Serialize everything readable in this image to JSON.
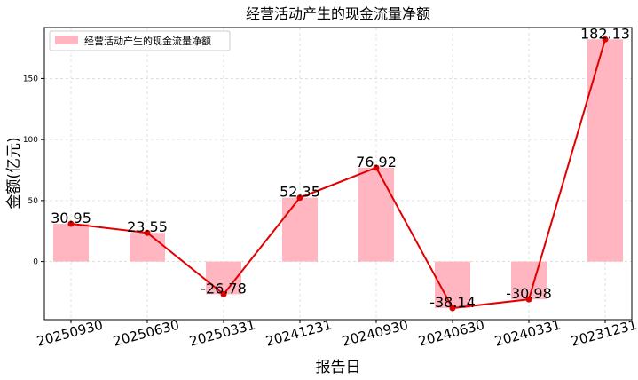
{
  "chart_data": {
    "type": "bar",
    "title": "经营活动产生的现金流量净额",
    "xlabel": "报告日",
    "ylabel": "金额(亿元)",
    "categories": [
      "20250930",
      "20250630",
      "20250331",
      "20241231",
      "20240930",
      "20240630",
      "20240331",
      "20231231"
    ],
    "series": [
      {
        "name": "经营活动产生的现金流量净额",
        "type": "bar",
        "values": [
          30.95,
          23.55,
          -26.78,
          52.35,
          76.92,
          -38.14,
          -30.98,
          182.13
        ],
        "color": "#ffb6c1"
      },
      {
        "name": "",
        "type": "line",
        "values": [
          30.95,
          23.55,
          -26.78,
          52.35,
          76.92,
          -38.14,
          -30.98,
          182.13
        ],
        "color": "#e00000"
      }
    ],
    "data_labels": [
      "30.95",
      "23.55",
      "-26.78",
      "52.35",
      "76.92",
      "-38.14",
      "-30.98",
      "182.13"
    ],
    "yticks": [
      0,
      50,
      100,
      150
    ],
    "ytick_labels": [
      "0",
      "50",
      "100",
      "150"
    ],
    "ylim": [
      -47.6,
      191.8
    ],
    "grid": true,
    "legend_position": "upper-left"
  }
}
